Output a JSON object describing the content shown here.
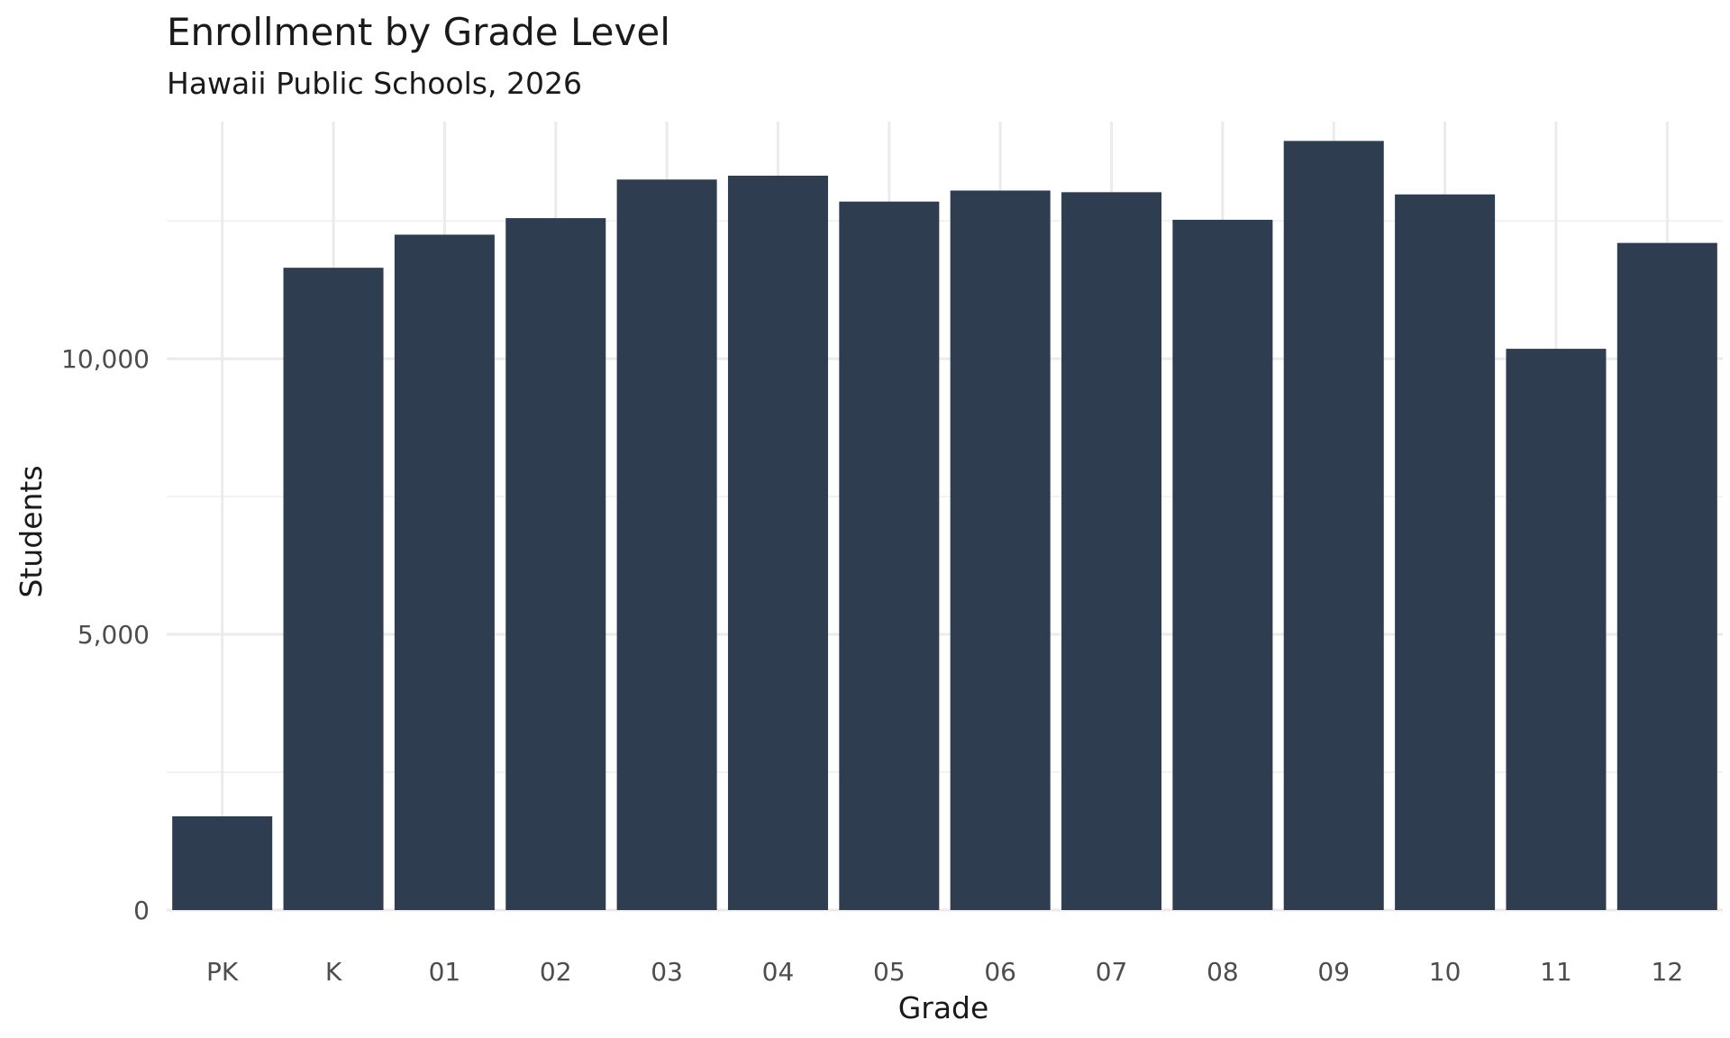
{
  "chart_data": {
    "type": "bar",
    "title": "Enrollment by Grade Level",
    "subtitle": "Hawaii Public Schools, 2026",
    "xlabel": "Grade",
    "ylabel": "Students",
    "categories": [
      "PK",
      "K",
      "01",
      "02",
      "03",
      "04",
      "05",
      "06",
      "07",
      "08",
      "09",
      "10",
      "11",
      "12"
    ],
    "values": [
      1700,
      11650,
      12250,
      12550,
      13250,
      13320,
      12850,
      13050,
      13020,
      12520,
      13950,
      12980,
      10180,
      12100
    ],
    "ylim": [
      0,
      14300
    ],
    "yticks": [
      0,
      5000,
      10000
    ],
    "ytick_labels": [
      "0",
      "5,000",
      "10,000"
    ],
    "grid": true,
    "bar_color": "#2e3e50"
  }
}
